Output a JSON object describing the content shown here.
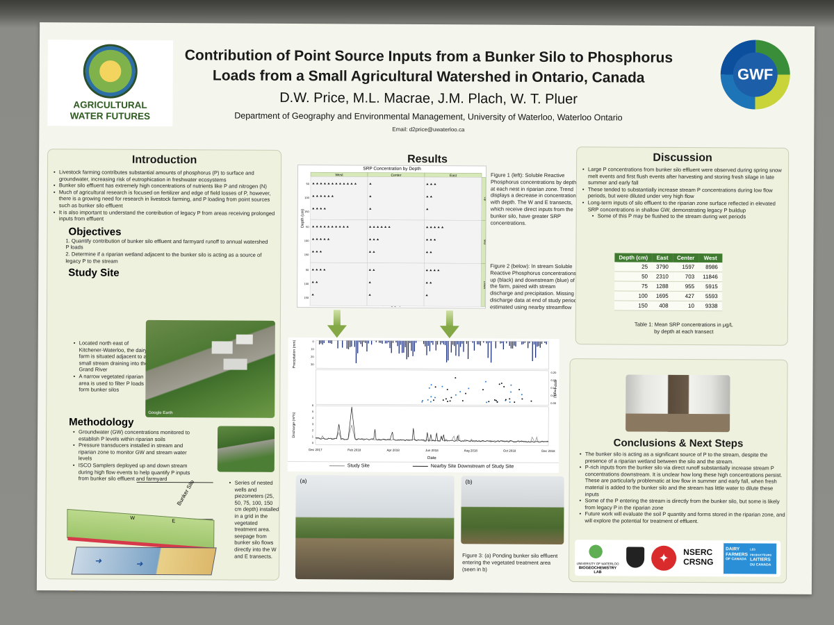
{
  "poster": {
    "title_line1": "Contribution of Point Source Inputs from a Bunker Silo to Phosphorus",
    "title_line2": "Loads from a Small Agricultural Watershed in Ontario, Canada",
    "authors": "D.W. Price, M.L. Macrae, J.M. Plach, W. T. Pluer",
    "department": "Department of Geography and Environmental Management, University of Waterloo, Waterloo Ontario",
    "email": "Email: d2price@uwaterloo.ca",
    "logo_left_line1": "AGRICULTURAL",
    "logo_left_line2": "WATER FUTURES",
    "logo_right": "GWF"
  },
  "introduction": {
    "heading": "Introduction",
    "bullets": [
      "Livestock farming contributes substantial amounts of phosphorus (P) to surface and groundwater, increasing risk of eutrophication in freshwater ecosystems",
      "Bunker silo effluent has extremely high concentrations of nutrients like P and nitrogen (N)",
      "Much of agricultural research is focused on fertilizer and edge of field losses of P, however, there is a growing need for research in livestock farming, and P loading from point sources such as bunker silo effluent",
      "It is also important to understand the contribution of legacy P from areas receiving prolonged inputs from effluent"
    ]
  },
  "objectives": {
    "heading": "Objectives",
    "items": [
      "1.  Quantify contribution of bunker silo effluent and farmyard runoff to annual watershed P loads",
      "2.  Determine if a riparian wetland adjacent to the bunker silo is acting as a source of legacy P to the stream"
    ]
  },
  "study_site": {
    "heading": "Study Site",
    "bullets": [
      "Located north east of Kitchener-Waterloo, the dairy farm is situated adjacent to a small stream draining into the Grand River",
      "A narrow vegetated riparian area is used to filter P loads form bunker silos"
    ],
    "map_credit": "Google Earth"
  },
  "methodology": {
    "heading": "Methodology",
    "bullets": [
      "Groundwater (GW) concentrations monitored to establish P levels within riparian soils",
      "Pressure transducers installed in stream and riparian zone to monitor GW and stream water levels",
      "ISCO Samplers deployed up and down stream during high flow events to help quantify P inputs from bunker silo effluent and farmyard"
    ],
    "side_bullet": "Series of nested wells and piezometers (25, 50, 75, 100, 150 cm depth) installed in a grid in the vegetated treatment area. seepage from bunker silo flows directly into the W and E transects.",
    "diagram_label": "Bunker Silo",
    "diagram_w": "W",
    "diagram_e": "E"
  },
  "results": {
    "heading": "Results",
    "fig1_caption": "Figure 1 (left): Soluble Reactive Phosphorus concentrations by depth at each nest in riparian zone. Trend displays a decrease in concentration with depth. The W and E transects, which receive direct inputs from the bunker silo, have greater SRP concentrations.",
    "fig2_caption": "Figure 2 (below): In stream Soluble Reactive Phosphorus concentrations up (black) and downstream (blue) of the farm, paired with stream discharge and precipitation. Missing discharge data at end of study period estimated using nearby streamflow",
    "fig3_caption": "Figure 3: (a) Ponding bunker silo effluent entering the vegetated treatment area (seen in b)",
    "photo_a": "(a)",
    "photo_b": "(b)"
  },
  "fig1": {
    "title": "SRP Concentration by Depth",
    "columns": [
      "West",
      "Center",
      "East"
    ],
    "rows": [
      "Up",
      "Mid",
      "Down"
    ],
    "ylabel": "Depth (cm)",
    "xlabel": "SRP (μg/L)",
    "x_ticks": [
      "0",
      "20000",
      "40000"
    ],
    "y_ticks": [
      "50",
      "100",
      "150"
    ]
  },
  "fig2": {
    "precip_label": "Precipitation (mm)",
    "srp_label": "SRP (mg/L)",
    "discharge_label": "Discharge (m³/s)",
    "xlabel": "Date",
    "x_ticks": [
      "Dec 2017",
      "Feb 2018",
      "Apr 2018",
      "Jun 2018",
      "Aug 2018",
      "Oct 2018",
      "Dec 2018"
    ],
    "precip_ticks": [
      "0",
      "10",
      "20",
      "30"
    ],
    "srp_ticks": [
      "0.00",
      "0.05",
      "0.10",
      "0.15",
      "0.20"
    ],
    "discharge_ticks": [
      "0",
      "1",
      "2",
      "3",
      "4",
      "5",
      "6"
    ],
    "legend": [
      "Study Site",
      "Nearby Site Downstream of Study Site"
    ]
  },
  "discussion": {
    "heading": "Discussion",
    "bullets": [
      "Large P concentrations from bunker silo effluent were observed during spring snow melt events and first flush events after harvesting and storing fresh silage in late summer and early fall",
      "These tended to substantially increase stream P concentrations during low flow periods, but were diluted under very high flow",
      "Long-term inputs of silo effluent to the riparian zone surface reflected in elevated SRP concentrations in shallow GW, demonstrating legacy P buildup"
    ],
    "sub_bullet": "Some of this P may be flushed to the stream during wet periods"
  },
  "table1": {
    "headers": [
      "Depth (cm)",
      "East",
      "Center",
      "West"
    ],
    "rows": [
      [
        "25",
        "3790",
        "1597",
        "8986"
      ],
      [
        "50",
        "2310",
        "703",
        "11846"
      ],
      [
        "75",
        "1288",
        "955",
        "5915"
      ],
      [
        "100",
        "1695",
        "427",
        "5593"
      ],
      [
        "150",
        "408",
        "10",
        "9338"
      ]
    ],
    "caption": "Table 1: Mean SRP concentrations in μg/L by depth at each transect"
  },
  "conclusions": {
    "heading": "Conclusions & Next Steps",
    "bullets": [
      "The bunker silo is acting as a significant source of P to the stream, despite the presence of a riparian wetland between the silo and the stream.",
      "P-rich inputs from the bunker silo via direct runoff substantially increase stream P concentrations downstream. It is unclear how long these high concentrations persist.  These are particularly problematic at low flow in summer and early fall, when fresh material is added to the bunker silo and the stream has little water to dilute these inputs",
      "Some of the P entering the stream is directly from the bunker silo, but some is likely from legacy P in the riparian zone",
      "Future work will evaluate the soil P quantity and forms stored in the riparian zone, and will explore the potential for treatment of effluent."
    ]
  },
  "sponsors": {
    "lab_line1": "UNIVERSITY OF WATERLOO",
    "lab_line2": "BIOGEOCHEMISTRY LAB",
    "nserc": "NSERC",
    "crsng": "CRSNG",
    "dairy_line1": "DAIRY",
    "dairy_line2": "FARMERS",
    "dairy_line3": "OF CANADA",
    "laitiers_line1": "LES PRODUCTEURS",
    "laitiers_line2": "LAITIERS",
    "laitiers_line3": "DU CANADA"
  },
  "colors": {
    "accent_green": "#3f7a30",
    "panel_bg": "#eef1dd",
    "bar_blue": "#1d2f75"
  }
}
